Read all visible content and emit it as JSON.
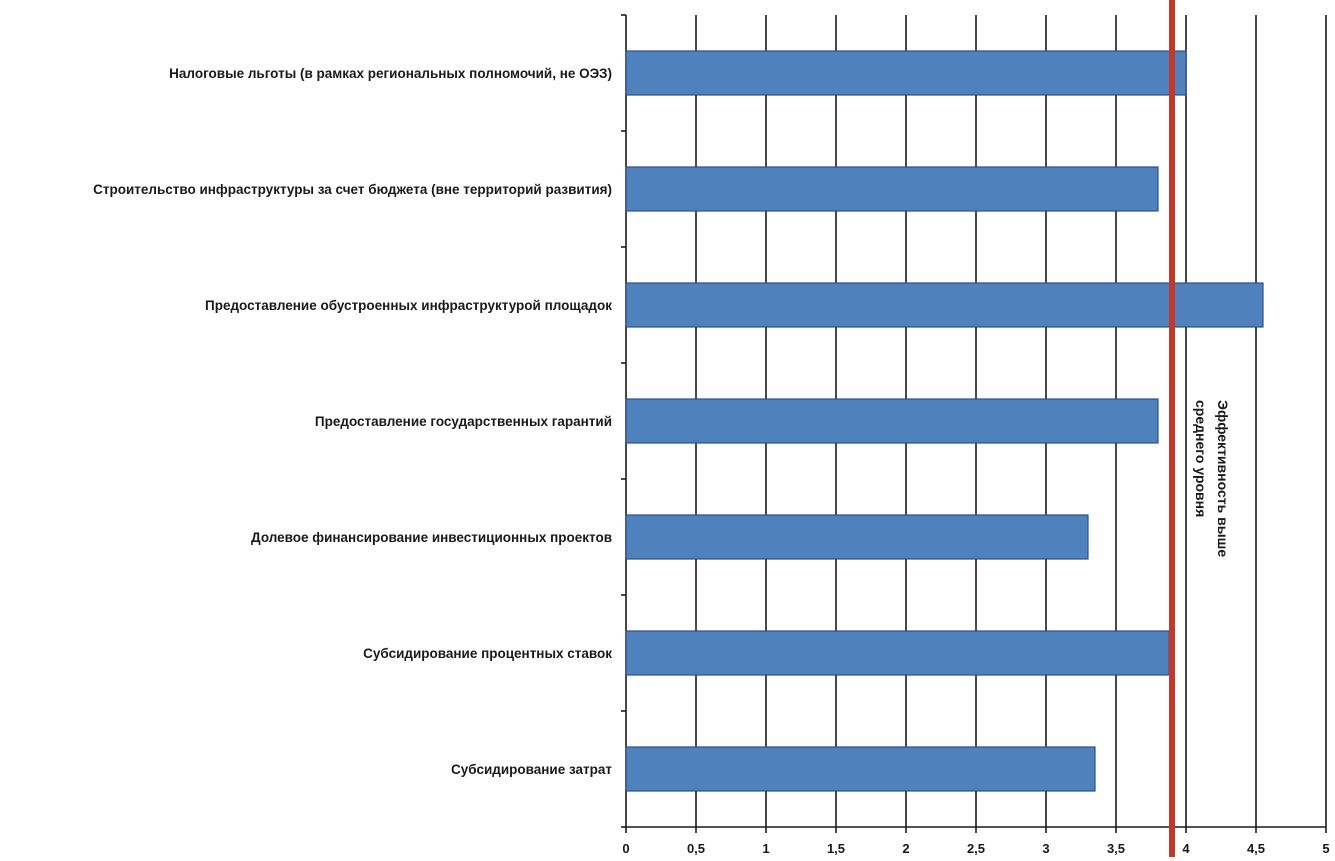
{
  "chart_data": {
    "type": "bar",
    "orientation": "horizontal",
    "categories": [
      "Налоговые льготы (в рамках региональных полномочий,  не ОЭЗ)",
      "Строительство инфраструктуры  за счет бюджета (вне территорий  развития)",
      "Предоставление обустроенных инфраструктурой  площадок",
      "Предоставление  государственных гарантий",
      "Долевое финансирование инвестиционных проектов",
      "Субсидирование процентных ставок",
      "Субсидирование затрат"
    ],
    "values": [
      4.0,
      3.8,
      4.55,
      3.8,
      3.3,
      3.88,
      3.35
    ],
    "xlim": [
      0,
      5
    ],
    "xticks": [
      "0",
      "0,5",
      "1",
      "1,5",
      "2",
      "2,5",
      "3",
      "3,5",
      "4",
      "4,5",
      "5"
    ],
    "grid": true,
    "bar_color": "#4f81bd",
    "reference_line": {
      "value": 3.9,
      "color": "#c0392b",
      "label_lines": [
        "Эффективность выше",
        "среднего уровня"
      ]
    },
    "title": "",
    "xlabel": "",
    "ylabel": ""
  }
}
